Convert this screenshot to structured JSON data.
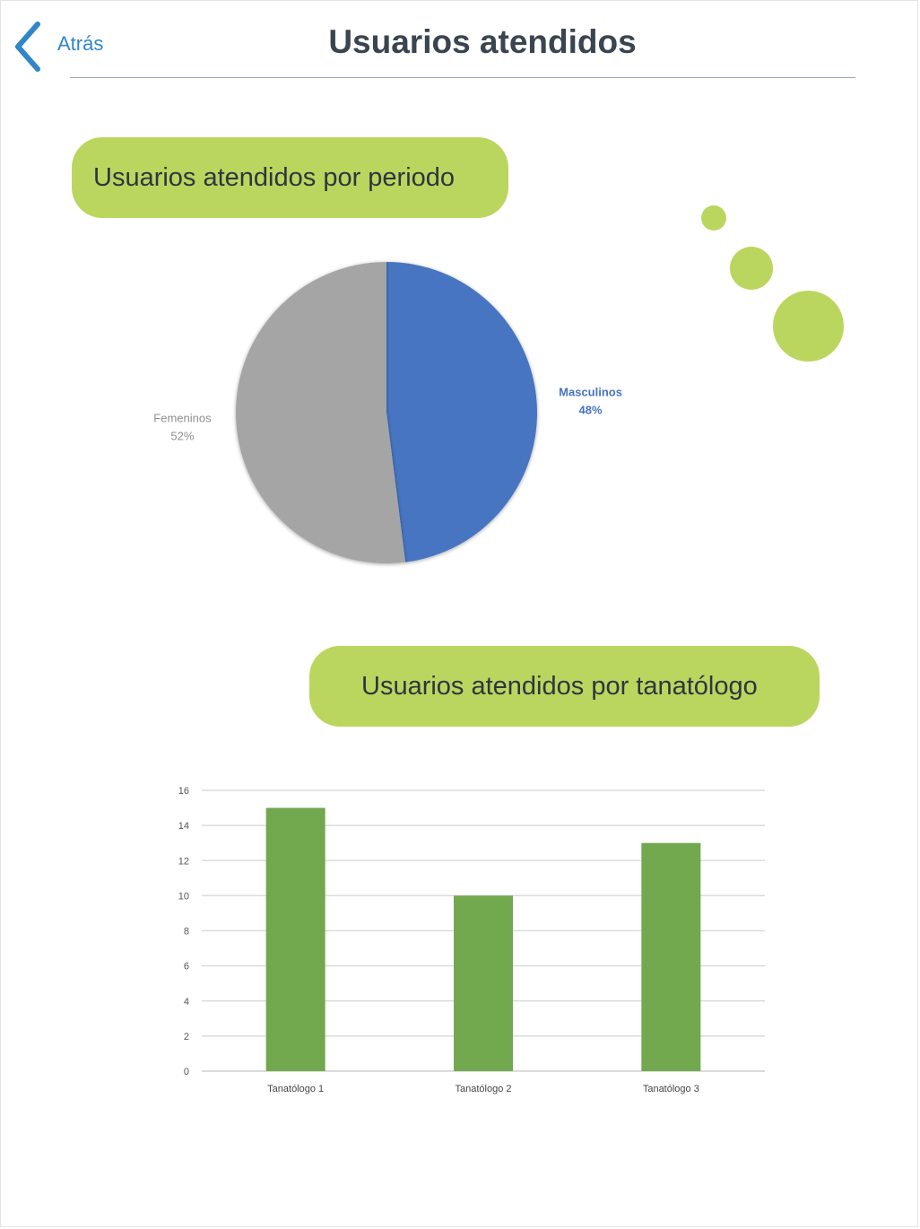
{
  "header": {
    "back_label": "Atrás",
    "title": "Usuarios atendidos"
  },
  "sections": {
    "period_title": "Usuarios atendidos por periodo",
    "tanatologo_title": "Usuarios atendidos por tanatólogo"
  },
  "colors": {
    "accent_green": "#bbd65e",
    "link_blue": "#2f86c9",
    "title_dark": "#3a4550"
  },
  "icons": {
    "back": "chevron-left-icon"
  },
  "chart_data": [
    {
      "type": "pie",
      "categories": [
        "Masculinos",
        "Femeninos"
      ],
      "values": [
        48,
        52
      ],
      "labels": [
        "48%",
        "52%"
      ],
      "colors": [
        "#4674c1",
        "#a5a5a5"
      ]
    },
    {
      "type": "bar",
      "categories": [
        "Tanatólogo 1",
        "Tanatólogo 2",
        "Tanatólogo 3"
      ],
      "values": [
        15,
        10,
        13
      ],
      "ylim": [
        0,
        16
      ],
      "yticks": [
        0,
        2,
        4,
        6,
        8,
        10,
        12,
        14,
        16
      ],
      "grid": true,
      "color": "#72a84e"
    }
  ]
}
